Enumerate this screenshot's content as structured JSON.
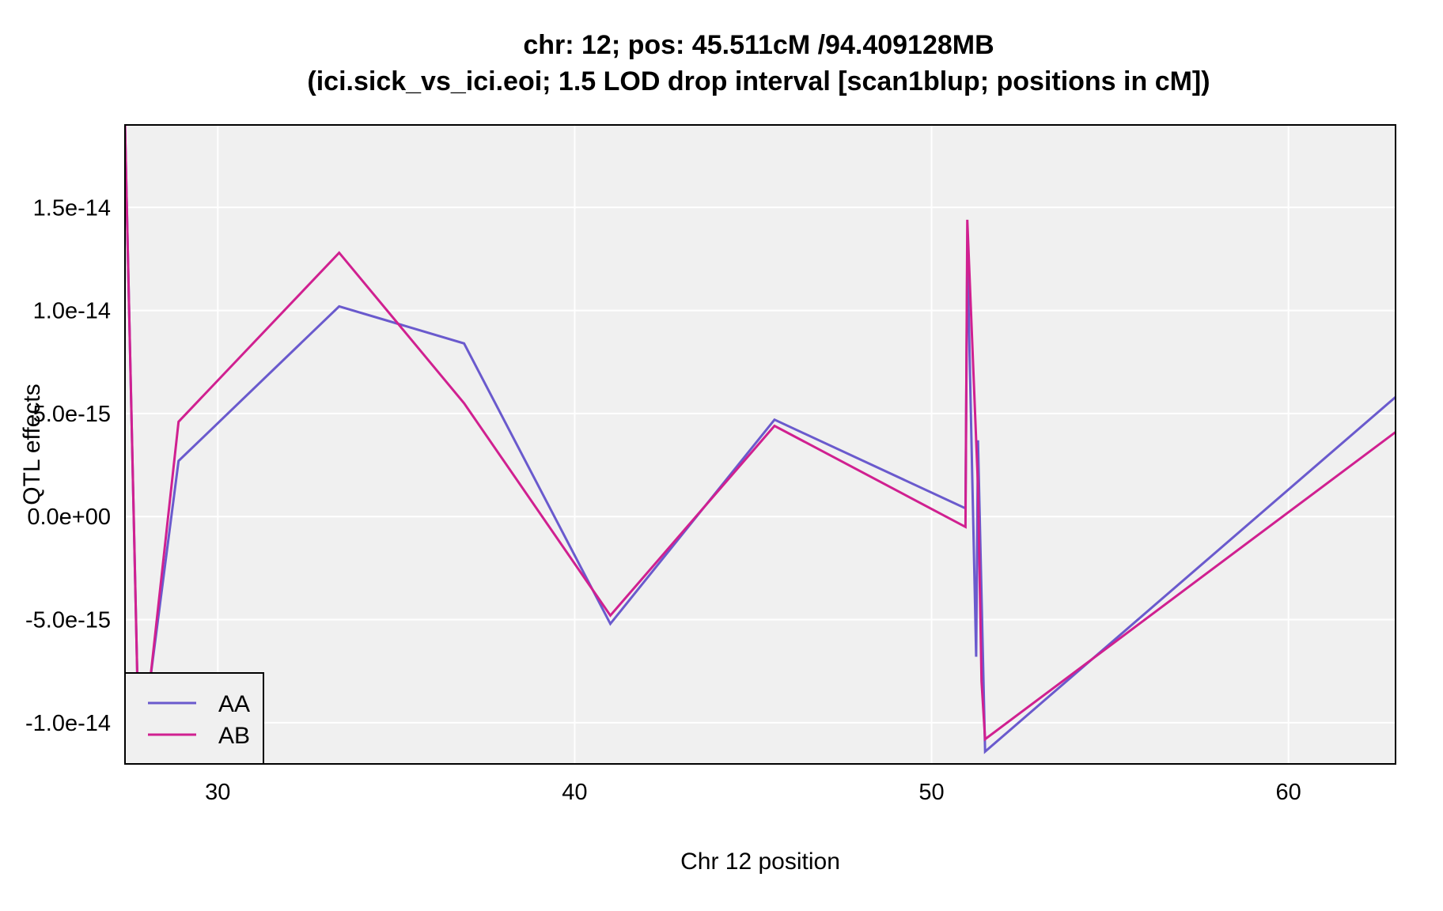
{
  "chart_data": {
    "type": "line",
    "title": "chr: 12; pos: 45.511cM /94.409128MB",
    "subtitle": "(ici.sick_vs_ici.eoi; 1.5 LOD drop interval [scan1blup; positions in cM])",
    "xlabel": "Chr 12 position",
    "ylabel": "QTL effects",
    "xlim": [
      27.4,
      63.0
    ],
    "ylim": [
      -1.2e-14,
      1.9e-14
    ],
    "x_ticks": [
      {
        "value": 30,
        "label": "30"
      },
      {
        "value": 40,
        "label": "40"
      },
      {
        "value": 50,
        "label": "50"
      },
      {
        "value": 60,
        "label": "60"
      }
    ],
    "y_ticks": [
      {
        "value": 1.5e-14,
        "label": "1.5e-14"
      },
      {
        "value": 1e-14,
        "label": "1.0e-14"
      },
      {
        "value": 5e-15,
        "label": "5.0e-15"
      },
      {
        "value": 0,
        "label": "0.0e+00"
      },
      {
        "value": -5e-15,
        "label": "-5.0e-15"
      },
      {
        "value": -1e-14,
        "label": "-1.0e-14"
      }
    ],
    "grid": true,
    "legend_position": "bottom-left",
    "series": [
      {
        "name": "AA",
        "color": "#6a5acd",
        "x": [
          27.4,
          27.8,
          28.1,
          28.9,
          33.4,
          36.9,
          41.0,
          45.6,
          50.95,
          51.0,
          51.25,
          51.3,
          51.5,
          63.0
        ],
        "y": [
          1.9e-14,
          -1.2e-14,
          -8e-15,
          2.7e-15,
          1.02e-14,
          8.4e-15,
          -5.2e-15,
          4.7e-15,
          4e-16,
          1.3e-14,
          -6.8e-15,
          3.7e-15,
          -1.14e-14,
          5.8e-15
        ]
      },
      {
        "name": "AB",
        "color": "#d02090",
        "x": [
          27.4,
          27.8,
          28.1,
          28.9,
          33.4,
          36.9,
          41.0,
          45.6,
          50.95,
          51.0,
          51.3,
          51.4,
          51.5,
          63.0
        ],
        "y": [
          1.9e-14,
          -1.2e-14,
          -8e-15,
          4.6e-15,
          1.28e-14,
          5.5e-15,
          -4.8e-15,
          4.4e-15,
          -5e-16,
          1.44e-14,
          1.5e-15,
          -8e-15,
          -1.08e-14,
          4.1e-15
        ]
      }
    ]
  }
}
